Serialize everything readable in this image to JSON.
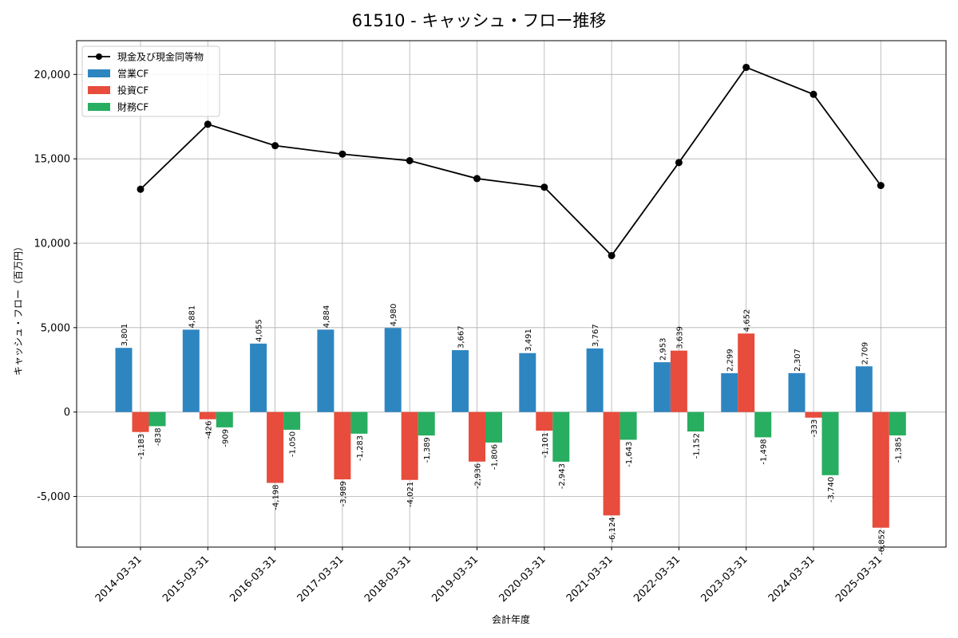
{
  "chart_data": {
    "type": "bar",
    "title": "61510 - キャッシュ・フロー推移",
    "xlabel": "会計年度",
    "ylabel": "キャッシュ・フロー（百万円）",
    "ylim": [
      -8000,
      22000
    ],
    "yticks": [
      -5000,
      0,
      5000,
      10000,
      15000,
      20000
    ],
    "ytick_labels": [
      "-5,000",
      "0",
      "5,000",
      "10,000",
      "15,000",
      "20,000"
    ],
    "grid": true,
    "legend_position": "top-left",
    "categories": [
      "2014-03-31",
      "2015-03-31",
      "2016-03-31",
      "2017-03-31",
      "2018-03-31",
      "2019-03-31",
      "2020-03-31",
      "2021-03-31",
      "2022-03-31",
      "2023-03-31",
      "2024-03-31",
      "2025-03-31"
    ],
    "series": [
      {
        "name": "営業CF",
        "type": "bar",
        "color": "#2e86c1",
        "values": [
          3801,
          4881,
          4055,
          4884,
          4980,
          3667,
          3491,
          3767,
          2953,
          2299,
          2307,
          2709
        ]
      },
      {
        "name": "投資CF",
        "type": "bar",
        "color": "#e74c3c",
        "values": [
          -1183,
          -426,
          -4198,
          -3989,
          -4021,
          -2936,
          -1101,
          -6124,
          3639,
          4652,
          -333,
          -6852
        ]
      },
      {
        "name": "財務CF",
        "type": "bar",
        "color": "#27ae60",
        "values": [
          -838,
          -909,
          -1050,
          -1283,
          -1389,
          -1806,
          -2943,
          -1643,
          -1152,
          -1498,
          -3740,
          -1385
        ]
      },
      {
        "name": "現金及び現金同等物",
        "type": "line",
        "color": "#000000",
        "values": [
          13200,
          17050,
          15780,
          15280,
          14890,
          13830,
          13320,
          9270,
          14780,
          20420,
          18820,
          13420
        ]
      }
    ]
  }
}
